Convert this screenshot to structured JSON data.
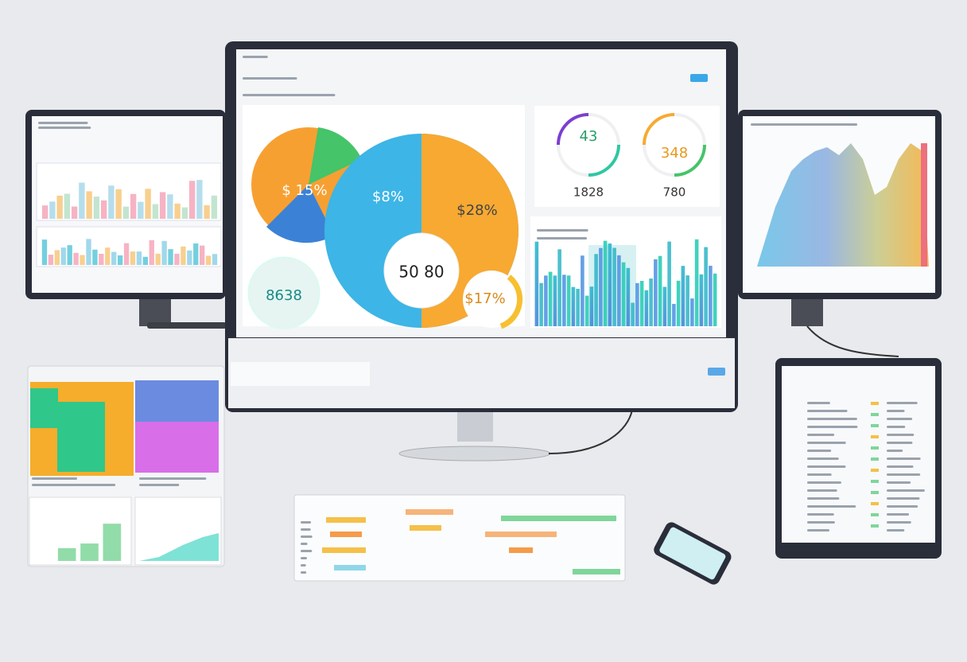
{
  "main_screen": {
    "pie_labels": [
      "$ 15%",
      "$8%",
      "$28%"
    ],
    "center_value": "50 80",
    "left_value": "8638",
    "small_value": "$17%",
    "gauges": [
      {
        "value": "43",
        "total": "1828"
      },
      {
        "value": "348",
        "total": "780"
      }
    ]
  }
}
